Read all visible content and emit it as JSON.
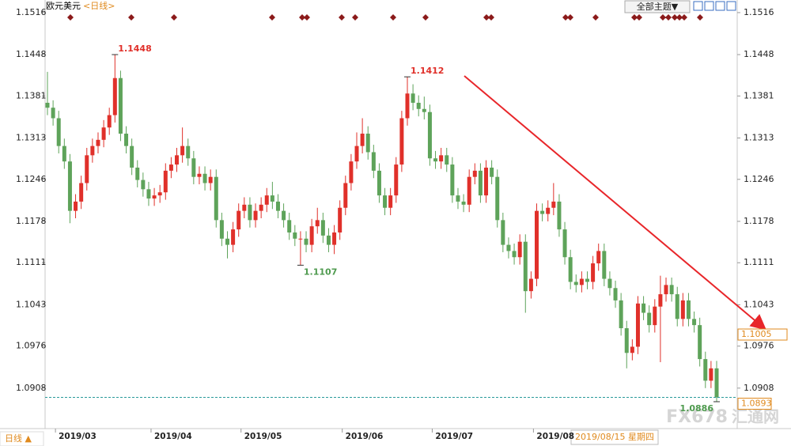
{
  "chart_data": {
    "type": "candlestick",
    "title": "欧元美元",
    "subtitle": "<日线>",
    "theme_button": "全部主题▼",
    "period_button": "日线 ▲",
    "cursor_date": "2019/08/15 星期四",
    "watermark": [
      "FX678",
      "汇通网"
    ],
    "up_color": "#e0302a",
    "down_color": "#5ea35a",
    "ylim": [
      1.0845,
      1.153
    ],
    "yticks": [
      1.0908,
      1.0976,
      1.1043,
      1.1111,
      1.1178,
      1.1246,
      1.1313,
      1.1381,
      1.1448,
      1.1516
    ],
    "xticks": [
      {
        "value": 1,
        "label": "2019/03"
      },
      {
        "value": 18,
        "label": "2019/04"
      },
      {
        "value": 34,
        "label": "2019/05"
      },
      {
        "value": 52,
        "label": "2019/06"
      },
      {
        "value": 68,
        "label": "2019/07"
      },
      {
        "value": 86,
        "label": "2019/08"
      }
    ],
    "open": [
      1.137,
      1.1362,
      1.1345,
      1.13,
      1.1275,
      1.1195,
      1.121,
      1.124,
      1.1285,
      1.13,
      1.131,
      1.133,
      1.135,
      1.141,
      1.132,
      1.13,
      1.1265,
      1.1245,
      1.123,
      1.1215,
      1.122,
      1.1225,
      1.126,
      1.127,
      1.1285,
      1.13,
      1.128,
      1.125,
      1.1255,
      1.124,
      1.125,
      1.118,
      1.115,
      1.114,
      1.1165,
      1.1195,
      1.1205,
      1.118,
      1.1195,
      1.1205,
      1.122,
      1.121,
      1.1195,
      1.118,
      1.116,
      1.115,
      1.115,
      1.114,
      1.117,
      1.118,
      1.1155,
      1.114,
      1.116,
      1.12,
      1.124,
      1.1275,
      1.13,
      1.132,
      1.129,
      1.126,
      1.122,
      1.12,
      1.122,
      1.127,
      1.1345,
      1.1385,
      1.137,
      1.136,
      1.1355,
      1.128,
      1.1275,
      1.1285,
      1.127,
      1.122,
      1.121,
      1.1205,
      1.125,
      1.126,
      1.122,
      1.1265,
      1.125,
      1.118,
      1.114,
      1.113,
      1.112,
      1.1145,
      1.1065,
      1.1085,
      1.1195,
      1.119,
      1.12,
      1.121,
      1.1165,
      1.112,
      1.108,
      1.1075,
      1.1085,
      1.108,
      1.111,
      1.113,
      1.1085,
      1.107,
      1.105,
      1.1005,
      1.0965,
      1.0975,
      1.1045,
      1.103,
      1.101,
      1.104,
      1.106,
      1.1075,
      1.106,
      1.102,
      1.105,
      1.102,
      1.101,
      1.0955,
      1.092,
      1.094
    ],
    "high": [
      1.142,
      1.1374,
      1.1357,
      1.1312,
      1.1287,
      1.1222,
      1.1252,
      1.1297,
      1.1312,
      1.1322,
      1.1342,
      1.1362,
      1.1448,
      1.1422,
      1.1332,
      1.1312,
      1.1277,
      1.1257,
      1.1242,
      1.1232,
      1.1237,
      1.1272,
      1.1282,
      1.1297,
      1.133,
      1.1312,
      1.1292,
      1.1267,
      1.1267,
      1.1262,
      1.1262,
      1.1192,
      1.1162,
      1.1177,
      1.1207,
      1.1217,
      1.1217,
      1.1207,
      1.1217,
      1.1232,
      1.1242,
      1.1222,
      1.1207,
      1.1192,
      1.1172,
      1.1162,
      1.1162,
      1.1182,
      1.12,
      1.1192,
      1.1167,
      1.1172,
      1.1212,
      1.1252,
      1.1287,
      1.1322,
      1.1345,
      1.1332,
      1.1302,
      1.1272,
      1.1232,
      1.1232,
      1.1282,
      1.1357,
      1.1412,
      1.14,
      1.1382,
      1.138,
      1.1367,
      1.1292,
      1.1297,
      1.1297,
      1.1282,
      1.1232,
      1.1222,
      1.1262,
      1.1272,
      1.1272,
      1.1277,
      1.1277,
      1.1262,
      1.1192,
      1.1152,
      1.1142,
      1.1157,
      1.1157,
      1.1097,
      1.1207,
      1.1207,
      1.1212,
      1.124,
      1.1222,
      1.1177,
      1.1132,
      1.1092,
      1.1097,
      1.1097,
      1.1122,
      1.1142,
      1.1142,
      1.1097,
      1.1082,
      1.1062,
      1.1017,
      1.0987,
      1.1057,
      1.1057,
      1.1042,
      1.1052,
      1.109,
      1.1087,
      1.1087,
      1.1072,
      1.1062,
      1.1062,
      1.1032,
      1.1022,
      1.0967,
      1.0952,
      1.0952
    ],
    "low": [
      1.135,
      1.1333,
      1.1288,
      1.1263,
      1.1175,
      1.1183,
      1.1198,
      1.1228,
      1.1273,
      1.1288,
      1.1298,
      1.1318,
      1.1338,
      1.1308,
      1.1288,
      1.1253,
      1.1233,
      1.1218,
      1.1203,
      1.1203,
      1.1208,
      1.1213,
      1.1248,
      1.1258,
      1.1273,
      1.1268,
      1.1238,
      1.1238,
      1.1228,
      1.1228,
      1.1168,
      1.1138,
      1.1118,
      1.1128,
      1.1153,
      1.1183,
      1.1168,
      1.1168,
      1.1183,
      1.1193,
      1.1198,
      1.1183,
      1.1168,
      1.1148,
      1.1138,
      1.1107,
      1.1128,
      1.1128,
      1.1158,
      1.1143,
      1.1128,
      1.1125,
      1.1148,
      1.1188,
      1.1228,
      1.1263,
      1.1288,
      1.1278,
      1.1248,
      1.1208,
      1.1188,
      1.1188,
      1.1208,
      1.1258,
      1.1333,
      1.1358,
      1.1348,
      1.1343,
      1.1268,
      1.1263,
      1.1263,
      1.1258,
      1.1208,
      1.1198,
      1.1193,
      1.1193,
      1.1238,
      1.1208,
      1.1208,
      1.1238,
      1.1168,
      1.1128,
      1.1118,
      1.1108,
      1.1108,
      1.103,
      1.1053,
      1.1073,
      1.1178,
      1.1178,
      1.1188,
      1.1153,
      1.1108,
      1.1068,
      1.1063,
      1.1063,
      1.1068,
      1.1068,
      1.1098,
      1.1073,
      1.1058,
      1.1038,
      1.0993,
      1.094,
      1.0953,
      1.0963,
      1.1018,
      1.0998,
      1.0998,
      1.095,
      1.1048,
      1.1048,
      1.1008,
      1.1008,
      1.1008,
      1.0998,
      1.0943,
      1.0908,
      1.0908,
      1.0886
    ],
    "close": [
      1.1362,
      1.1345,
      1.13,
      1.1275,
      1.1195,
      1.121,
      1.124,
      1.1285,
      1.13,
      1.131,
      1.133,
      1.135,
      1.141,
      1.132,
      1.13,
      1.1265,
      1.1245,
      1.123,
      1.1215,
      1.122,
      1.1225,
      1.126,
      1.127,
      1.1285,
      1.13,
      1.128,
      1.125,
      1.1255,
      1.124,
      1.125,
      1.118,
      1.115,
      1.114,
      1.1165,
      1.1195,
      1.1205,
      1.118,
      1.1195,
      1.1205,
      1.122,
      1.121,
      1.1195,
      1.118,
      1.116,
      1.115,
      1.115,
      1.114,
      1.117,
      1.118,
      1.1155,
      1.114,
      1.116,
      1.12,
      1.124,
      1.1275,
      1.13,
      1.132,
      1.129,
      1.126,
      1.122,
      1.12,
      1.122,
      1.127,
      1.1345,
      1.1385,
      1.137,
      1.136,
      1.1355,
      1.128,
      1.1275,
      1.1285,
      1.127,
      1.122,
      1.121,
      1.1205,
      1.125,
      1.126,
      1.122,
      1.1265,
      1.125,
      1.118,
      1.114,
      1.113,
      1.112,
      1.1145,
      1.1065,
      1.1085,
      1.1195,
      1.119,
      1.12,
      1.121,
      1.1165,
      1.112,
      1.108,
      1.1075,
      1.1085,
      1.108,
      1.111,
      1.113,
      1.1085,
      1.107,
      1.105,
      1.1005,
      1.0965,
      1.0975,
      1.1045,
      1.103,
      1.101,
      1.104,
      1.106,
      1.1075,
      1.106,
      1.102,
      1.105,
      1.102,
      1.101,
      1.0955,
      1.092,
      1.094,
      1.0893
    ],
    "high_marks": [
      1.1448,
      1.1412
    ],
    "low_marks": [
      1.1107,
      1.0886
    ],
    "last_price": 1.0893,
    "trend_target": 1.1005
  }
}
